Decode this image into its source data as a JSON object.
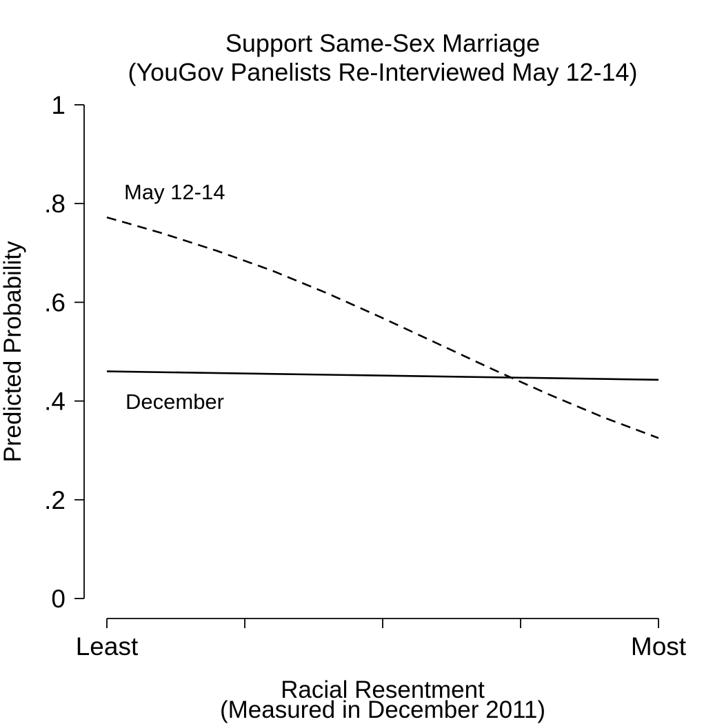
{
  "chart_data": {
    "type": "line",
    "title": "Support Same-Sex Marriage",
    "subtitle": "(YouGov Panelists Re-Interviewed May 12-14)",
    "ylabel": "Predicted Probability",
    "xlabel": "Racial Resentment",
    "xlabel_sub": "(Measured in December 2011)",
    "ylim": [
      0,
      1
    ],
    "y_ticks": [
      0,
      0.2,
      0.4,
      0.6,
      0.8,
      1
    ],
    "y_tick_labels": [
      "0",
      ".2",
      ".4",
      ".6",
      ".8",
      "1"
    ],
    "xlim": [
      0,
      1
    ],
    "x_ticks": [
      0,
      0.25,
      0.5,
      0.75,
      1
    ],
    "x_tick_labels": [
      "Least",
      "",
      "",
      "",
      "Most"
    ],
    "grid": false,
    "legend": "none",
    "series": [
      {
        "name": "May 12-14",
        "line_style": "dashed",
        "color": "#000000",
        "x": [
          0,
          0.1,
          0.2,
          0.3,
          0.4,
          0.5,
          0.6,
          0.7,
          0.8,
          0.9,
          1
        ],
        "y": [
          0.772,
          0.74,
          0.704,
          0.664,
          0.618,
          0.568,
          0.516,
          0.464,
          0.414,
          0.367,
          0.325
        ]
      },
      {
        "name": "December",
        "line_style": "solid",
        "color": "#000000",
        "x": [
          0,
          1
        ],
        "y": [
          0.46,
          0.443
        ]
      }
    ],
    "annotations": [
      {
        "text": "May 12-14",
        "series": "May 12-14"
      },
      {
        "text": "December",
        "series": "December"
      }
    ]
  }
}
